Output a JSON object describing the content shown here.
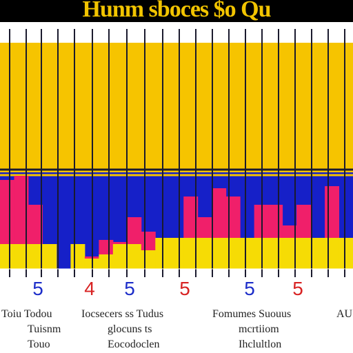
{
  "title": "Hunm sboces $o Qu",
  "colors": {
    "top": "#f6c400",
    "band": "#1620c8",
    "bar": "#f01f6a",
    "bottom": "#f6dc05",
    "number_a": "#1d2ec9",
    "number_b": "#d82323",
    "grid": "#1a1a2e"
  },
  "chart_data": {
    "type": "bar",
    "number_labels": [
      "5",
      "4",
      "5",
      "5",
      "5",
      "5"
    ],
    "category_labels": [
      [
        "Toiu Todou",
        "Tuisnm",
        "Touo"
      ],
      [
        "Iocsecers ss Tudus",
        "glocuns ts",
        "Eocodoclen"
      ],
      [
        "Fomumes Suouus",
        "mcrtiiom",
        "Ihclultlon"
      ],
      [
        "AU"
      ]
    ],
    "series": [
      {
        "values": [
          1.55,
          1.65,
          0.95,
          0,
          0,
          0,
          0.05,
          0.35,
          0.05,
          0.65,
          0.45,
          0,
          0,
          1.0,
          0.5,
          1.2,
          1.0,
          0,
          0.8,
          0.8,
          0.3,
          0.8,
          0,
          1.25,
          0
        ]
      },
      {
        "values": [
          0.6,
          0.6,
          0.6,
          0.6,
          0,
          0.6,
          0.25,
          0.35,
          0.6,
          0.6,
          0.45,
          0.75,
          0.75,
          0.75,
          0.75,
          0.75,
          0.75,
          0.75,
          0.75,
          0.75,
          0.75,
          0.75,
          0.75,
          0.75,
          0.75
        ]
      }
    ]
  }
}
